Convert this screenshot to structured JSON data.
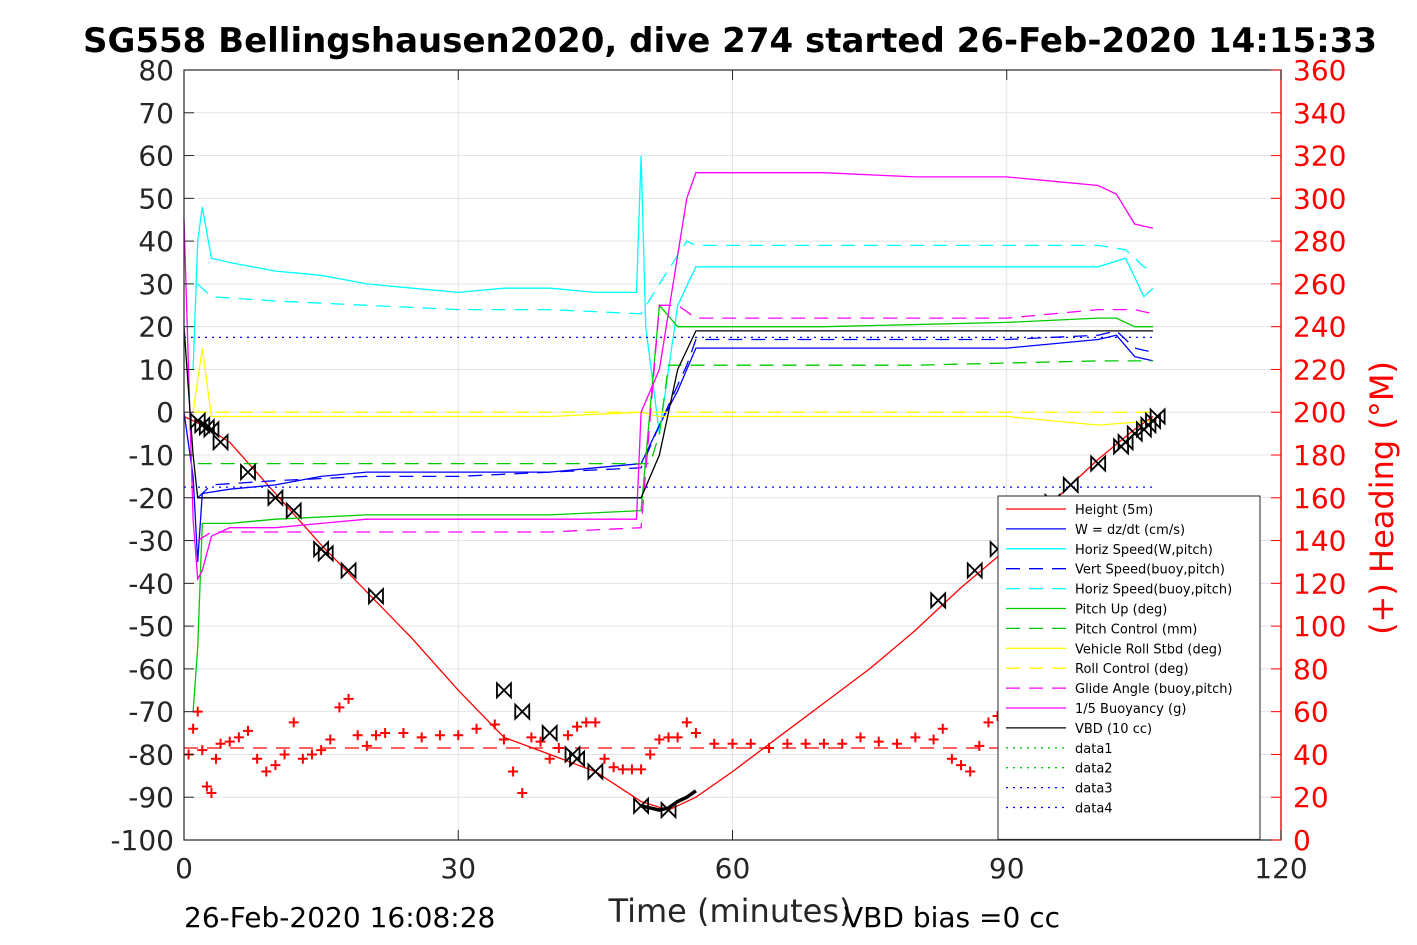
{
  "chart_data": {
    "type": "line",
    "title": "SG558 Bellingshausen2020, dive 274 started 26-Feb-2020 14:15:33",
    "xlabel": "Time (minutes)",
    "ylabel": "",
    "y2label": "(+) Heading (°M)",
    "xlim": [
      0,
      120
    ],
    "ylim": [
      -100,
      80
    ],
    "y2lim": [
      0,
      360
    ],
    "x_ticks": [
      0,
      30,
      60,
      90,
      120
    ],
    "y_ticks": [
      80,
      70,
      60,
      50,
      40,
      30,
      20,
      10,
      0,
      -10,
      -20,
      -30,
      -40,
      -50,
      -60,
      -70,
      -80,
      -90,
      -100
    ],
    "y2_ticks": [
      360,
      340,
      320,
      300,
      280,
      260,
      240,
      220,
      200,
      180,
      160,
      140,
      120,
      100,
      80,
      60,
      40,
      20,
      0
    ],
    "grid": true,
    "legend_position": "lower-right",
    "footer": {
      "timestamp": "26-Feb-2020 16:08:28",
      "vbd_bias": "VBD bias =0 cc"
    },
    "series": [
      {
        "name": "Height (5m)",
        "color": "#ff0000",
        "style": "solid",
        "x": [
          0,
          1,
          2,
          5,
          10,
          15,
          20,
          25,
          30,
          35,
          40,
          45,
          50,
          53,
          56,
          60,
          65,
          70,
          75,
          80,
          85,
          90,
          95,
          100,
          104,
          106
        ],
        "y": [
          -1,
          -2,
          -3,
          -7,
          -19,
          -31,
          -42,
          -53,
          -65,
          -76,
          -80,
          -84,
          -91,
          -93,
          -90,
          -84,
          -76,
          -68,
          -60,
          -51,
          -41,
          -32,
          -21,
          -11,
          -4,
          -1
        ]
      },
      {
        "name": "W = dz/dt (cm/s)",
        "color": "#0000ff",
        "style": "solid",
        "x": [
          0,
          1,
          1.5,
          2,
          5,
          10,
          15,
          20,
          25,
          30,
          35,
          40,
          45,
          50,
          52,
          54,
          56,
          60,
          70,
          80,
          90,
          100,
          102,
          104,
          106
        ],
        "y": [
          0,
          -15,
          -35,
          -19,
          -18,
          -17,
          -15,
          -14,
          -14,
          -14,
          -14,
          -14,
          -13,
          -12,
          -3,
          5,
          15,
          15,
          15,
          15,
          15,
          17,
          18,
          13,
          12
        ]
      },
      {
        "name": "Horiz Speed(W,pitch)",
        "color": "#00ffff",
        "style": "solid",
        "x": [
          1,
          1.5,
          2,
          3,
          5,
          10,
          15,
          20,
          25,
          30,
          35,
          40,
          45,
          49.5,
          50,
          50.5,
          52,
          54,
          56,
          60,
          70,
          80,
          90,
          100,
          103,
          105,
          106
        ],
        "y": [
          10,
          40,
          48,
          36,
          35,
          33,
          32,
          30,
          29,
          28,
          29,
          29,
          28,
          28,
          60,
          20,
          -5,
          25,
          34,
          34,
          34,
          34,
          34,
          34,
          36,
          27,
          29
        ]
      },
      {
        "name": "Vert Speed(buoy,pitch)",
        "color": "#0000ff",
        "style": "dashed",
        "x": [
          1.5,
          3,
          10,
          20,
          30,
          40,
          50,
          52,
          55,
          56,
          70,
          90,
          100,
          102,
          104,
          106
        ],
        "y": [
          -20,
          -17,
          -16,
          -15,
          -15,
          -14,
          -13,
          -3,
          11,
          17,
          17,
          17,
          18,
          19,
          15,
          14
        ]
      },
      {
        "name": "Horiz Speed(buoy,pitch)",
        "color": "#00ffff",
        "style": "dashed",
        "x": [
          1.5,
          3,
          10,
          20,
          30,
          40,
          50,
          52,
          55,
          56,
          70,
          90,
          100,
          103,
          105,
          106
        ],
        "y": [
          30,
          27,
          26,
          25,
          24,
          24,
          23,
          30,
          40,
          39,
          39,
          39,
          39,
          38,
          34,
          33
        ]
      },
      {
        "name": "Pitch Up (deg)",
        "color": "#00cc00",
        "style": "solid",
        "x": [
          1,
          1.5,
          2,
          5,
          10,
          20,
          30,
          40,
          50,
          52,
          54,
          56,
          60,
          70,
          90,
          100,
          102,
          104,
          106
        ],
        "y": [
          -70,
          -55,
          -26,
          -26,
          -25,
          -24,
          -24,
          -24,
          -23,
          25,
          20,
          20,
          20,
          20,
          21,
          22,
          22,
          20,
          20
        ]
      },
      {
        "name": "Pitch Control (mm)",
        "color": "#00cc00",
        "style": "dashed",
        "x": [
          1.5,
          3,
          50,
          51,
          52,
          53,
          56,
          80,
          100,
          104,
          106
        ],
        "y": [
          -12,
          -12,
          -12,
          -12,
          -5,
          11,
          11,
          11,
          12,
          12,
          12
        ]
      },
      {
        "name": "Vehicle Roll Stbd (deg)",
        "color": "#ffff00",
        "style": "solid",
        "x": [
          1,
          2,
          3,
          5,
          10,
          20,
          30,
          40,
          50,
          52,
          60,
          70,
          80,
          90,
          100,
          106
        ],
        "y": [
          0,
          15,
          -1,
          -1,
          -1,
          -1,
          -1,
          -1,
          0,
          -1,
          -1,
          -1,
          -1,
          -1,
          -3,
          -2
        ]
      },
      {
        "name": "Roll Control (deg)",
        "color": "#ffff00",
        "style": "dashed",
        "x": [
          1,
          3,
          20,
          40,
          50,
          60,
          80,
          100,
          106
        ],
        "y": [
          0,
          0,
          0,
          0,
          0,
          0,
          0,
          0,
          0
        ]
      },
      {
        "name": "Glide Angle (buoy,pitch)",
        "color": "#ff00ff",
        "style": "dashed",
        "x": [
          1.5,
          3,
          10,
          20,
          30,
          40,
          50,
          52,
          54,
          56,
          70,
          90,
          100,
          104,
          106
        ],
        "y": [
          -30,
          -28,
          -28,
          -28,
          -28,
          -28,
          -27,
          25,
          25,
          22,
          22,
          22,
          24,
          24,
          23
        ]
      },
      {
        "name": "1/5 Buoyancy (g)",
        "color": "#ff00ff",
        "style": "solid",
        "x": [
          0,
          1,
          1.5,
          2,
          3,
          5,
          10,
          15,
          20,
          30,
          40,
          49.5,
          50,
          52,
          55,
          56,
          60,
          70,
          80,
          90,
          95,
          100,
          102,
          104,
          106
        ],
        "y": [
          45,
          -25,
          -39,
          -37,
          -29,
          -27,
          -27,
          -26,
          -25,
          -25,
          -25,
          -25,
          0,
          10,
          50,
          56,
          56,
          56,
          55,
          55,
          54,
          53,
          51,
          44,
          43
        ]
      },
      {
        "name": "VBD (10 cc)",
        "color": "#000000",
        "style": "solid",
        "x": [
          0,
          1,
          1.5,
          3,
          10,
          20,
          30,
          40,
          50,
          52,
          54,
          56,
          60,
          80,
          100,
          106
        ],
        "y": [
          20,
          -10,
          -20,
          -20,
          -20,
          -20,
          -20,
          -20,
          -20,
          -10,
          10,
          19,
          19,
          19,
          19,
          19
        ]
      },
      {
        "name": "data1",
        "color": "#00cc00",
        "style": "dotted",
        "x": [],
        "y": []
      },
      {
        "name": "data2",
        "color": "#00cc00",
        "style": "dotted",
        "x": [],
        "y": []
      },
      {
        "name": "data3",
        "color": "#0000ff",
        "style": "dotted",
        "x": [
          0,
          106
        ],
        "y": [
          17.5,
          17.5
        ]
      },
      {
        "name": "data4",
        "color": "#0000ff",
        "style": "dotted",
        "x": [
          0,
          106
        ],
        "y": [
          -17.5,
          -17.5
        ]
      }
    ],
    "extra_lines": [
      {
        "color": "#ff0000",
        "style": "dashed",
        "axis": "right",
        "x": [
          0,
          106
        ],
        "y": [
          43,
          43
        ]
      }
    ],
    "heading_points": {
      "color": "#ff0000",
      "marker": "+",
      "axis": "right",
      "x": [
        0.5,
        1,
        1.5,
        2,
        2.5,
        3,
        3.5,
        4,
        5,
        6,
        7,
        8,
        9,
        10,
        11,
        12,
        13,
        14,
        15,
        16,
        17,
        18,
        19,
        20,
        21,
        22,
        24,
        26,
        28,
        30,
        32,
        34,
        35,
        36,
        37,
        38,
        39,
        40,
        41,
        42,
        43,
        44,
        45,
        46,
        47,
        48,
        49,
        50,
        51,
        52,
        53,
        54,
        55,
        56,
        58,
        60,
        62,
        64,
        66,
        68,
        70,
        72,
        74,
        76,
        78,
        80,
        82,
        83,
        84,
        85,
        86,
        87,
        88,
        89,
        90
      ],
      "y": [
        40,
        52,
        60,
        42,
        25,
        22,
        38,
        45,
        46,
        48,
        51,
        38,
        32,
        35,
        40,
        55,
        38,
        40,
        42,
        47,
        62,
        66,
        49,
        44,
        49,
        50,
        50,
        48,
        49,
        49,
        52,
        54,
        47,
        32,
        22,
        48,
        46,
        38,
        43,
        49,
        53,
        55,
        55,
        38,
        34,
        33,
        33,
        33,
        40,
        47,
        48,
        48,
        55,
        50,
        45,
        45,
        45,
        43,
        45,
        45,
        45,
        45,
        48,
        46,
        45,
        48,
        47,
        52,
        38,
        35,
        32,
        44,
        55,
        58,
        62
      ]
    },
    "dive_markers": {
      "color": "#000000",
      "marker": "hourglass",
      "x": [
        1.5,
        2,
        2.5,
        3,
        4,
        7,
        10,
        12,
        15,
        15.5,
        18,
        21,
        35,
        37,
        40,
        42.5,
        43,
        45,
        50,
        53,
        82.5,
        86.5,
        89,
        95,
        97,
        100,
        102.5,
        103,
        104,
        105,
        105.5,
        106,
        106.5
      ],
      "y": [
        -2,
        -3,
        -3.5,
        -4,
        -7,
        -14,
        -20,
        -23,
        -32,
        -33,
        -37,
        -43,
        -65,
        -70,
        -75,
        -80,
        -81,
        -84,
        -92,
        -93,
        -44,
        -37,
        -32,
        -21,
        -17,
        -12,
        -8,
        -7,
        -5,
        -4,
        -3,
        -2,
        -1
      ]
    },
    "vbd_thick": {
      "color": "#000000",
      "x": [
        50,
        51,
        52,
        53,
        54,
        55,
        56
      ],
      "y": [
        -92,
        -92.5,
        -93,
        -92.5,
        -91,
        -90,
        -88.5
      ]
    }
  }
}
